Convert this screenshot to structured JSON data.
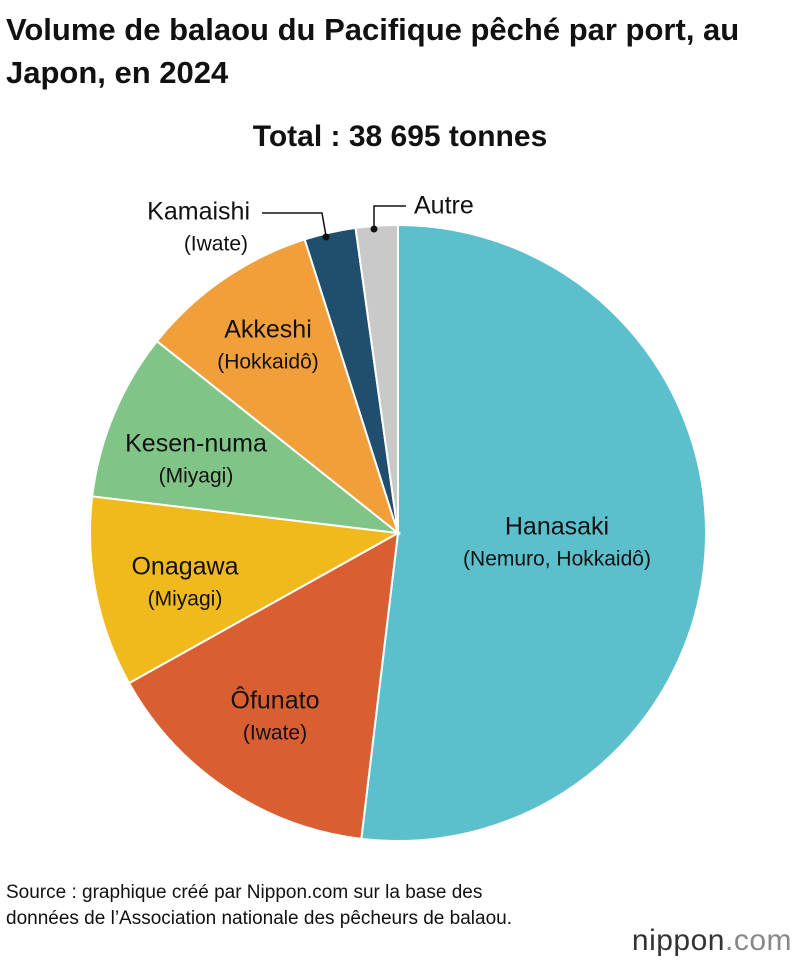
{
  "chart_data": {
    "type": "pie",
    "title": "Volume de balaou du Pacifique pêché par port, au Japon, en 2024",
    "subtitle": "Total : 38 695 tonnes",
    "categories": [
      "Hanasaki",
      "Ôfunato",
      "Onagawa",
      "Kesen-numa",
      "Akkeshi",
      "Kamaishi",
      "Autre"
    ],
    "sublabels": [
      "(Nemuro, Hokkaidô)",
      "(Iwate)",
      "(Miyagi)",
      "(Miyagi)",
      "(Hokkaidô)",
      "(Iwate)",
      null
    ],
    "values": [
      51.9,
      15,
      10,
      8.8,
      9.4,
      2.7,
      2.2
    ],
    "colors": [
      "#5cc0cc",
      "#d95f32",
      "#f0b91c",
      "#80c487",
      "#f09f3b",
      "#1f4e6e",
      "#c9c9c9"
    ],
    "source": "Source : graphique créé par Nippon.com sur la base des données de l’Association nationale des pêcheurs de balaou.",
    "logo": {
      "name": "nippon",
      "suffix": ".com"
    }
  }
}
